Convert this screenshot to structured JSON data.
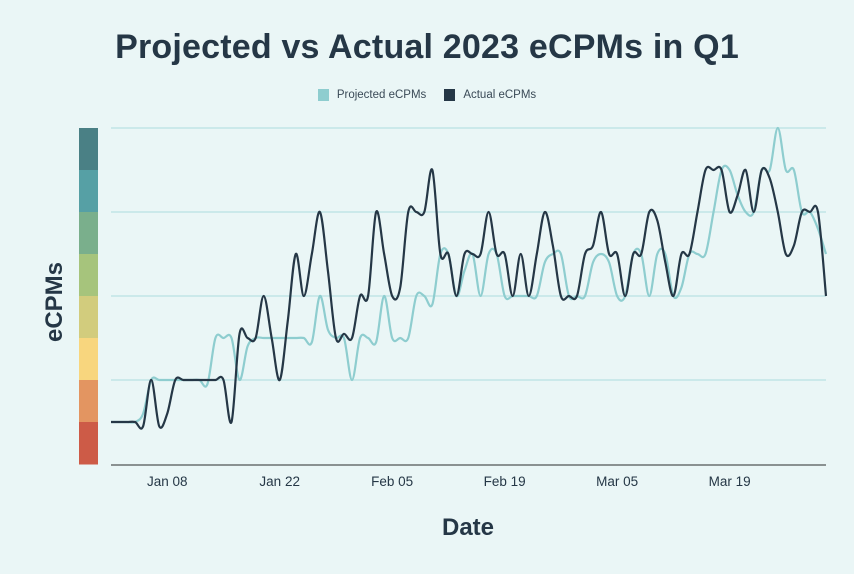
{
  "chart_data": {
    "type": "line",
    "title": "Projected vs Actual 2023 eCPMs in Q1",
    "xlabel": "Date",
    "ylabel": "eCPMs",
    "x_start": "2023-01-01",
    "x_end": "2023-03-31",
    "x_ticks": [
      {
        "label": "Jan 08",
        "day": 7
      },
      {
        "label": "Jan 22",
        "day": 21
      },
      {
        "label": "Feb 05",
        "day": 35
      },
      {
        "label": "Feb 19",
        "day": 49
      },
      {
        "label": "Mar 05",
        "day": 63
      },
      {
        "label": "Mar 19",
        "day": 77
      }
    ],
    "ylim": [
      0,
      4
    ],
    "y_gridlines": [
      1,
      2,
      3,
      4
    ],
    "y_tick_labels_shown": false,
    "grid": true,
    "legend": "top-center",
    "series": [
      {
        "name": "Projected eCPMs",
        "color": "#8ECDCF",
        "values": [
          0.5,
          0.5,
          0.5,
          0.5,
          0.6,
          1,
          1,
          1,
          1,
          1,
          1,
          1,
          0.95,
          1.5,
          1.5,
          1.5,
          1,
          1.4,
          1.5,
          1.5,
          1.5,
          1.5,
          1.5,
          1.5,
          1.5,
          1.45,
          2,
          1.6,
          1.5,
          1.5,
          1,
          1.5,
          1.5,
          1.45,
          2,
          1.5,
          1.5,
          1.5,
          2,
          2,
          1.9,
          2.5,
          2.5,
          2,
          2.3,
          2.5,
          2,
          2.5,
          2.5,
          2,
          2,
          2,
          2,
          2,
          2.4,
          2.5,
          2.5,
          2,
          2,
          2,
          2.4,
          2.5,
          2.4,
          2,
          2,
          2.5,
          2.5,
          2,
          2.5,
          2.5,
          2,
          2.1,
          2.5,
          2.5,
          2.5,
          3,
          3.5,
          3.5,
          3.2,
          3,
          3,
          3.5,
          3.5,
          4,
          3.5,
          3.5,
          3,
          3,
          2.8,
          2.5
        ]
      },
      {
        "name": "Actual eCPMs",
        "color": "#253746",
        "values": [
          0.5,
          0.5,
          0.5,
          0.5,
          0.45,
          1,
          0.45,
          0.6,
          1,
          1,
          1,
          1,
          1,
          1,
          1,
          0.5,
          1.55,
          1.5,
          1.5,
          2,
          1.5,
          1,
          1.7,
          2.5,
          2,
          2.5,
          3,
          2.3,
          1.5,
          1.55,
          1.5,
          2,
          2,
          3,
          2.5,
          2,
          2.1,
          3,
          3,
          3,
          3.5,
          2.5,
          2.5,
          2,
          2.5,
          2.5,
          2.5,
          3,
          2.5,
          2.5,
          2,
          2.5,
          2,
          2.5,
          3,
          2.6,
          2,
          2,
          2,
          2.5,
          2.6,
          3,
          2.5,
          2.5,
          2,
          2.5,
          2.5,
          3,
          2.9,
          2.4,
          2,
          2.5,
          2.5,
          3,
          3.5,
          3.5,
          3.5,
          3,
          3.2,
          3.5,
          3,
          3.5,
          3.4,
          3,
          2.5,
          2.6,
          3,
          3,
          3,
          2
        ]
      }
    ],
    "color_scale": [
      "#4A8085",
      "#56A0A5",
      "#7AAF8C",
      "#A6C47C",
      "#D2CC7D",
      "#F8D67E",
      "#E39561",
      "#CD5B47"
    ]
  }
}
